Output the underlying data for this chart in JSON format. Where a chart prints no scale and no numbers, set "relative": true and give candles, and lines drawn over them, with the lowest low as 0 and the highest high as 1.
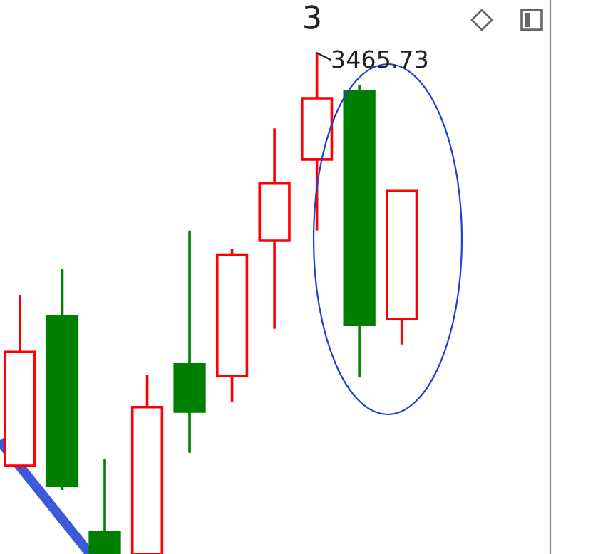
{
  "chart_data": {
    "type": "candlestick",
    "relative": true,
    "categories": [
      null,
      null,
      null,
      null,
      null,
      null,
      null,
      null,
      null,
      null
    ],
    "ohlc": [
      [
        0.176,
        0.517,
        0.17,
        0.403
      ],
      [
        0.474,
        0.568,
        0.128,
        0.136
      ],
      [
        0.043,
        0.19,
        0,
        0
      ],
      [
        0,
        0.358,
        0,
        0.293
      ],
      [
        0.378,
        0.645,
        0.202,
        0.284
      ],
      [
        0.355,
        0.608,
        0.304,
        0.597
      ],
      [
        0.625,
        0.849,
        0.449,
        0.739
      ],
      [
        0.787,
        1,
        0.645,
        0.909
      ],
      [
        0.923,
        0.935,
        0.352,
        0.457
      ],
      [
        0.469,
        0.724,
        0.418,
        0.724
      ]
    ],
    "colors": [
      "#ff0000",
      "#008000",
      "#008000",
      "#ff0000",
      "#008000",
      "#ff0000",
      "#ff0000",
      "#ff0000",
      "#008000",
      "#ff0000"
    ],
    "annotations": [
      "3",
      "3465.73"
    ]
  }
}
